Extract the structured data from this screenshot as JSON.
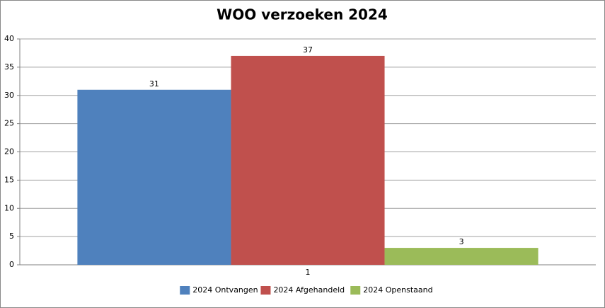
{
  "chart_data": {
    "type": "bar",
    "title": "WOO verzoeken 2024",
    "categories": [
      "1"
    ],
    "series": [
      {
        "name": "2024 Ontvangen",
        "color": "#4f81bd",
        "values": [
          31
        ]
      },
      {
        "name": "2024 Afgehandeld",
        "color": "#c0504d",
        "values": [
          37
        ]
      },
      {
        "name": "2024 Openstaand",
        "color": "#9bbb59",
        "values": [
          3
        ]
      }
    ],
    "ylim": [
      0,
      40
    ],
    "yticks": [
      0,
      5,
      10,
      15,
      20,
      25,
      30,
      35,
      40
    ],
    "grid": true,
    "legend": "bottom"
  }
}
